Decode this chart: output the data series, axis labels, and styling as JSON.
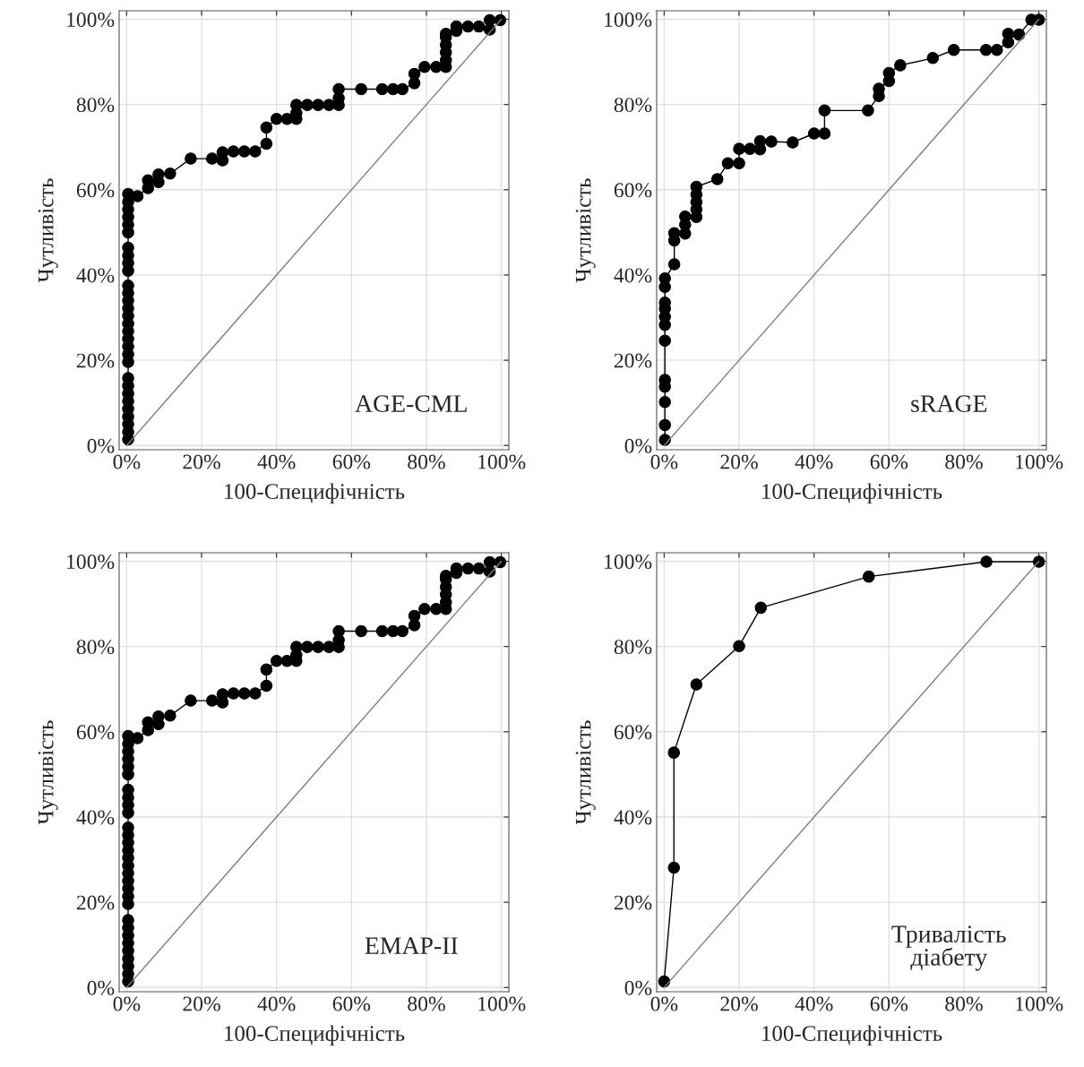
{
  "chart_data": [
    {
      "type": "line",
      "xlabel": "100-Специфічність",
      "ylabel": "Чутливість",
      "annotations": [
        "AGE-CML"
      ],
      "xlim": [
        -2,
        102
      ],
      "ylim": [
        -1,
        102
      ],
      "grid": true,
      "marker": "circle",
      "xticks": [
        {
          "value": 0,
          "label": "0%"
        },
        {
          "value": 20,
          "label": "20%"
        },
        {
          "value": 40,
          "label": "40%"
        },
        {
          "value": 60,
          "label": "60%"
        },
        {
          "value": 80,
          "label": "80%"
        },
        {
          "value": 100,
          "label": "100%"
        }
      ],
      "yticks": [
        {
          "value": 0,
          "label": "0%"
        },
        {
          "value": 20,
          "label": "20%"
        },
        {
          "value": 40,
          "label": "40%"
        },
        {
          "value": 60,
          "label": "60%"
        },
        {
          "value": 80,
          "label": "80%"
        },
        {
          "value": 100,
          "label": "100%"
        }
      ],
      "series": [
        {
          "color": "#000000",
          "x": [
            0.4,
            0.4,
            0.4,
            0.4,
            0.4,
            0.4,
            0.4,
            0.4,
            0.4,
            0.4,
            0.4,
            0.4,
            0.4,
            0.4,
            0.4,
            0.4,
            0.4,
            0.4,
            0.4,
            0.4,
            0.4,
            0.4,
            0.4,
            0.4,
            0.4,
            0.4,
            0.4,
            0.4,
            0.4,
            0.4,
            2.9,
            5.7,
            5.7,
            8.5,
            8.5,
            11.6,
            17.1,
            22.8,
            25.6,
            25.6,
            28.5,
            31.4,
            34.3,
            37.3,
            37.3,
            40,
            42.8,
            45.3,
            45.3,
            45.3,
            48.2,
            51.1,
            54,
            56.6,
            56.6,
            56.6,
            62.6,
            68.2,
            71.1,
            73.6,
            76.8,
            76.8,
            79.5,
            82.6,
            85.2,
            85.2,
            85.2,
            85.2,
            85.2,
            85.2,
            88,
            88,
            91.1,
            94,
            96.9,
            96.9,
            99.7
          ],
          "values": [
            1.4,
            3.2,
            5,
            6.8,
            8.6,
            10.4,
            12.2,
            14,
            15.8,
            19.6,
            21.4,
            23.2,
            25,
            26.8,
            28.6,
            30.4,
            32.2,
            34,
            35.8,
            37.5,
            41,
            42.8,
            44.6,
            46.4,
            50,
            51.8,
            53.6,
            55.4,
            57.2,
            59,
            58.5,
            60.4,
            62.2,
            61.8,
            63.6,
            63.8,
            67.3,
            67.3,
            66.9,
            68.8,
            69,
            69,
            69,
            70.8,
            74.6,
            76.6,
            76.6,
            76.6,
            78,
            79.9,
            79.9,
            79.9,
            79.9,
            79.9,
            81.5,
            83.6,
            83.6,
            83.6,
            83.6,
            83.6,
            85,
            87.2,
            88.8,
            88.8,
            88.8,
            90.4,
            92.2,
            94,
            95.8,
            96.6,
            97.3,
            98.3,
            98.3,
            98.3,
            97.6,
            99.8,
            99.8
          ]
        },
        {
          "type": "line",
          "color": "#7f7f7f",
          "marker": "none",
          "x": [
            0,
            100
          ],
          "values": [
            0,
            100
          ]
        }
      ]
    },
    {
      "type": "line",
      "xlabel": "100-Специфічність",
      "ylabel": "Чутливість",
      "annotations": [
        "sRAGE"
      ],
      "xlim": [
        -2,
        102
      ],
      "ylim": [
        -1,
        102
      ],
      "grid": true,
      "marker": "circle",
      "xticks": [
        {
          "value": 0,
          "label": "0%"
        },
        {
          "value": 20,
          "label": "20%"
        },
        {
          "value": 40,
          "label": "40%"
        },
        {
          "value": 60,
          "label": "60%"
        },
        {
          "value": 80,
          "label": "80%"
        },
        {
          "value": 100,
          "label": "100%"
        }
      ],
      "yticks": [
        {
          "value": 0,
          "label": "0%"
        },
        {
          "value": 20,
          "label": "20%"
        },
        {
          "value": 40,
          "label": "40%"
        },
        {
          "value": 60,
          "label": "60%"
        },
        {
          "value": 80,
          "label": "80%"
        },
        {
          "value": 100,
          "label": "100%"
        }
      ],
      "series": [
        {
          "color": "#000000",
          "x": [
            0.2,
            0.2,
            0.2,
            0.2,
            0.2,
            0.2,
            0.2,
            0.2,
            0.2,
            0.2,
            0.2,
            0.2,
            2.7,
            2.7,
            2.7,
            5.6,
            5.6,
            5.6,
            8.6,
            8.6,
            8.6,
            8.6,
            8.6,
            14.2,
            17,
            20,
            20,
            22.9,
            25.6,
            25.6,
            28.6,
            34.3,
            40,
            42.8,
            42.8,
            54.4,
            57.3,
            57.3,
            60,
            60,
            63,
            71.7,
            77.3,
            85.9,
            88.8,
            91.8,
            91.8,
            94.7,
            98,
            100
          ],
          "values": [
            1.3,
            4.8,
            10.2,
            13.8,
            15.4,
            24.6,
            28.3,
            30.2,
            32.1,
            33.5,
            37.2,
            39.2,
            42.5,
            48.1,
            49.8,
            49.7,
            51.8,
            53.7,
            53.6,
            55.4,
            57.1,
            58.9,
            60.7,
            62.5,
            66.2,
            66.2,
            69.6,
            69.6,
            69.5,
            71.4,
            71.3,
            71.1,
            73.2,
            73.2,
            78.6,
            78.6,
            82,
            83.7,
            85.5,
            87.4,
            89.2,
            90.9,
            92.8,
            92.8,
            92.8,
            94.6,
            96.6,
            96.4,
            99.9,
            99.9
          ]
        },
        {
          "type": "line",
          "color": "#7f7f7f",
          "marker": "none",
          "x": [
            0,
            100
          ],
          "values": [
            0,
            100
          ]
        }
      ]
    },
    {
      "type": "line",
      "xlabel": "100-Специфічність",
      "ylabel": "Чутливість",
      "annotations": [
        "EMAP-II"
      ],
      "xlim": [
        -2,
        102
      ],
      "ylim": [
        -1,
        102
      ],
      "grid": true,
      "marker": "circle",
      "xticks": [
        {
          "value": 0,
          "label": "0%"
        },
        {
          "value": 20,
          "label": "20%"
        },
        {
          "value": 40,
          "label": "40%"
        },
        {
          "value": 60,
          "label": "60%"
        },
        {
          "value": 80,
          "label": "80%"
        },
        {
          "value": 100,
          "label": "100%"
        }
      ],
      "yticks": [
        {
          "value": 0,
          "label": "0%"
        },
        {
          "value": 20,
          "label": "20%"
        },
        {
          "value": 40,
          "label": "40%"
        },
        {
          "value": 60,
          "label": "60%"
        },
        {
          "value": 80,
          "label": "80%"
        },
        {
          "value": 100,
          "label": "100%"
        }
      ],
      "series": [
        {
          "color": "#000000",
          "x": [
            0.4,
            0.4,
            0.4,
            0.4,
            0.4,
            0.4,
            0.4,
            0.4,
            0.4,
            0.4,
            0.4,
            0.4,
            0.4,
            0.4,
            0.4,
            0.4,
            0.4,
            0.4,
            0.4,
            0.4,
            0.4,
            0.4,
            0.4,
            0.4,
            0.4,
            0.4,
            0.4,
            0.4,
            0.4,
            0.4,
            2.9,
            5.7,
            5.7,
            8.5,
            8.5,
            11.6,
            17.1,
            22.8,
            25.6,
            25.6,
            28.5,
            31.4,
            34.3,
            37.3,
            37.3,
            40,
            42.8,
            45.3,
            45.3,
            45.3,
            48.2,
            51.1,
            54,
            56.6,
            56.6,
            56.6,
            62.6,
            68.2,
            71.1,
            73.6,
            76.8,
            76.8,
            79.5,
            82.6,
            85.2,
            85.2,
            85.2,
            85.2,
            85.2,
            85.2,
            88,
            88,
            91.1,
            94,
            96.9,
            96.9,
            99.7
          ],
          "values": [
            1.4,
            3.2,
            5,
            6.8,
            8.6,
            10.4,
            12.2,
            14,
            15.8,
            19.6,
            21.4,
            23.2,
            25,
            26.8,
            28.6,
            30.4,
            32.2,
            34,
            35.8,
            37.5,
            41,
            42.8,
            44.6,
            46.4,
            50,
            51.8,
            53.6,
            55.4,
            57.2,
            59,
            58.5,
            60.4,
            62.2,
            61.8,
            63.6,
            63.8,
            67.3,
            67.3,
            66.9,
            68.8,
            69,
            69,
            69,
            70.8,
            74.6,
            76.6,
            76.6,
            76.6,
            78,
            79.9,
            79.9,
            79.9,
            79.9,
            79.9,
            81.5,
            83.6,
            83.6,
            83.6,
            83.6,
            83.6,
            85,
            87.2,
            88.8,
            88.8,
            88.8,
            90.4,
            92.2,
            94,
            95.8,
            96.6,
            97.3,
            98.3,
            98.3,
            98.3,
            97.6,
            99.8,
            99.8
          ]
        },
        {
          "type": "line",
          "color": "#7f7f7f",
          "marker": "none",
          "x": [
            0,
            100
          ],
          "values": [
            0,
            100
          ]
        }
      ]
    },
    {
      "type": "line",
      "xlabel": "100-Специфічність",
      "ylabel": "Чутливість",
      "annotations": [
        "Тривалість\nдіабету"
      ],
      "xlim": [
        -2,
        102
      ],
      "ylim": [
        -1,
        102
      ],
      "grid": true,
      "marker": "circle",
      "xticks": [
        {
          "value": 0,
          "label": "0%"
        },
        {
          "value": 20,
          "label": "20%"
        },
        {
          "value": 40,
          "label": "40%"
        },
        {
          "value": 60,
          "label": "60%"
        },
        {
          "value": 80,
          "label": "80%"
        },
        {
          "value": 100,
          "label": "100%"
        }
      ],
      "yticks": [
        {
          "value": 0,
          "label": "0%"
        },
        {
          "value": 20,
          "label": "20%"
        },
        {
          "value": 40,
          "label": "40%"
        },
        {
          "value": 60,
          "label": "60%"
        },
        {
          "value": 80,
          "label": "80%"
        },
        {
          "value": 100,
          "label": "100%"
        }
      ],
      "series": [
        {
          "color": "#000000",
          "x": [
            0,
            2.6,
            2.6,
            8.6,
            20,
            25.8,
            54.6,
            86,
            100
          ],
          "values": [
            1.4,
            28.1,
            55.1,
            71.1,
            80.1,
            89.1,
            96.4,
            99.9,
            99.9
          ]
        },
        {
          "type": "line",
          "color": "#7f7f7f",
          "marker": "none",
          "x": [
            0,
            100
          ],
          "values": [
            0,
            100
          ]
        }
      ]
    }
  ]
}
